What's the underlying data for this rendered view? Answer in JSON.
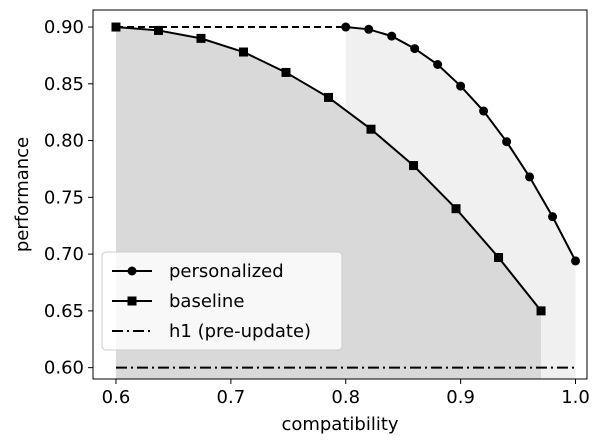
{
  "chart_data": {
    "type": "line",
    "title": "",
    "xlabel": "compatibility",
    "ylabel": "performance",
    "xlim": [
      0.58,
      1.01
    ],
    "ylim": [
      0.59,
      0.915
    ],
    "xticks": [
      0.6,
      0.7,
      0.8,
      0.9,
      1.0
    ],
    "xtick_labels": [
      "0.6",
      "0.7",
      "0.8",
      "0.9",
      "1.0"
    ],
    "yticks": [
      0.6,
      0.65,
      0.7,
      0.75,
      0.8,
      0.85,
      0.9
    ],
    "ytick_labels": [
      "0.60",
      "0.65",
      "0.70",
      "0.75",
      "0.80",
      "0.85",
      "0.90"
    ],
    "grid": false,
    "legend_position": "lower-left",
    "series": [
      {
        "name": "personalized",
        "marker": "circle",
        "line_style": "solid",
        "color": "#000000",
        "x": [
          0.8,
          0.82,
          0.84,
          0.86,
          0.88,
          0.9,
          0.92,
          0.94,
          0.96,
          0.98,
          1.0
        ],
        "y": [
          0.9,
          0.898,
          0.892,
          0.881,
          0.867,
          0.848,
          0.826,
          0.799,
          0.768,
          0.733,
          0.694
        ]
      },
      {
        "name": "baseline",
        "marker": "square",
        "line_style": "solid",
        "color": "#000000",
        "x": [
          0.6,
          0.637,
          0.674,
          0.711,
          0.748,
          0.785,
          0.822,
          0.859,
          0.896,
          0.933,
          0.97
        ],
        "y": [
          0.9,
          0.897,
          0.89,
          0.878,
          0.86,
          0.838,
          0.81,
          0.778,
          0.74,
          0.697,
          0.65
        ]
      },
      {
        "name": "h1 (pre-update)",
        "marker": "none",
        "line_style": "dashdot",
        "color": "#000000",
        "x": [
          0.6,
          1.0
        ],
        "y": [
          0.6,
          0.6
        ]
      }
    ],
    "extra_lines": [
      {
        "line_style": "dashed",
        "color": "#000000",
        "x": [
          0.6,
          0.8
        ],
        "y": [
          0.9,
          0.9
        ]
      }
    ],
    "shaded_regions": [
      {
        "under_series": "personalized",
        "color": "#f0f0f0"
      },
      {
        "under_series": "baseline",
        "color": "#d9d9d9"
      }
    ]
  }
}
